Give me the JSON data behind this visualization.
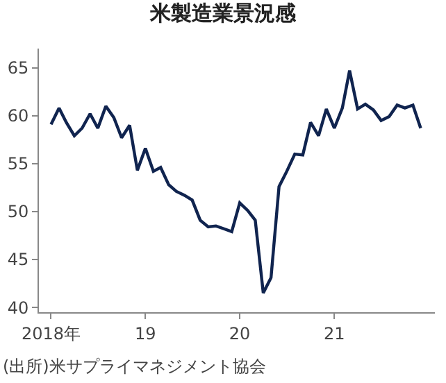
{
  "chart_data": {
    "type": "line",
    "title": "米製造業景況感",
    "x": [
      "2018-01",
      "2018-02",
      "2018-03",
      "2018-04",
      "2018-05",
      "2018-06",
      "2018-07",
      "2018-08",
      "2018-09",
      "2018-10",
      "2018-11",
      "2018-12",
      "2019-01",
      "2019-02",
      "2019-03",
      "2019-04",
      "2019-05",
      "2019-06",
      "2019-07",
      "2019-08",
      "2019-09",
      "2019-10",
      "2019-11",
      "2019-12",
      "2020-01",
      "2020-02",
      "2020-03",
      "2020-04",
      "2020-05",
      "2020-06",
      "2020-07",
      "2020-08",
      "2020-09",
      "2020-10",
      "2020-11",
      "2020-12",
      "2021-01",
      "2021-02",
      "2021-03",
      "2021-04",
      "2021-05",
      "2021-06",
      "2021-07",
      "2021-08",
      "2021-09",
      "2021-10",
      "2021-11",
      "2021-12"
    ],
    "series": [
      {
        "color": "#10244f",
        "values": [
          59.1,
          60.8,
          59.3,
          57.9,
          58.7,
          60.2,
          58.7,
          61.0,
          59.8,
          57.7,
          59.0,
          54.3,
          56.6,
          54.2,
          54.6,
          52.8,
          52.1,
          51.7,
          51.2,
          49.1,
          48.4,
          48.5,
          48.2,
          47.9,
          50.9,
          50.1,
          49.1,
          41.5,
          43.1,
          52.6,
          54.2,
          56.0,
          55.9,
          59.3,
          57.9,
          60.7,
          58.7,
          60.8,
          64.7,
          60.7,
          61.2,
          60.6,
          59.5,
          59.9,
          61.1,
          60.8,
          61.1,
          58.7
        ]
      }
    ],
    "xlim": [
      "2017-11-15",
      "2022-01-25"
    ],
    "xticks": [
      {
        "value": "2018-01",
        "label": "2018年"
      },
      {
        "value": "2019-01",
        "label": "19"
      },
      {
        "value": "2020-01",
        "label": "20"
      },
      {
        "value": "2021-01",
        "label": "21"
      }
    ],
    "ylim": [
      39.5,
      67
    ],
    "yticks": [
      40,
      45,
      50,
      55,
      60,
      65
    ],
    "grid": false,
    "marker": "none",
    "line_style": "solid",
    "annotations": [
      "(出所)米サプライマネジメント協会"
    ]
  }
}
